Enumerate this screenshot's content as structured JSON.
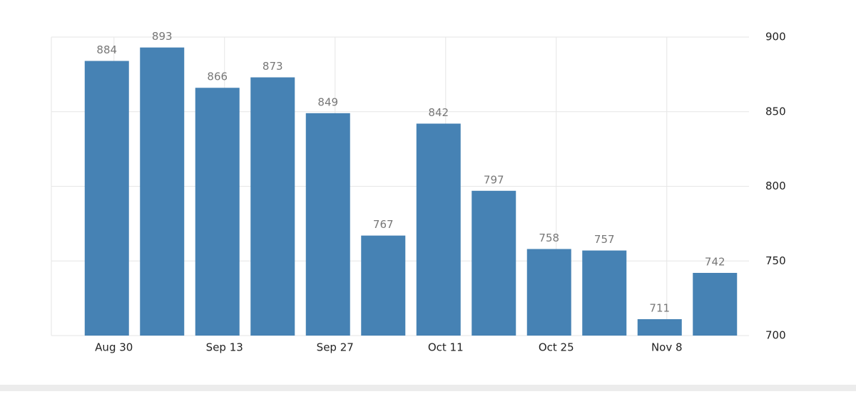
{
  "chart_data": {
    "type": "bar",
    "categories": [
      "Aug 30",
      null,
      "Sep 13",
      null,
      "Sep 27",
      null,
      "Oct 11",
      null,
      "Oct 25",
      null,
      "Nov 8",
      null
    ],
    "values": [
      884,
      893,
      866,
      873,
      849,
      767,
      842,
      797,
      758,
      757,
      711,
      742
    ],
    "color": "#4682b4",
    "ylim": [
      700,
      900
    ],
    "yticks": [
      700,
      750,
      800,
      850,
      900
    ],
    "grid": true
  }
}
